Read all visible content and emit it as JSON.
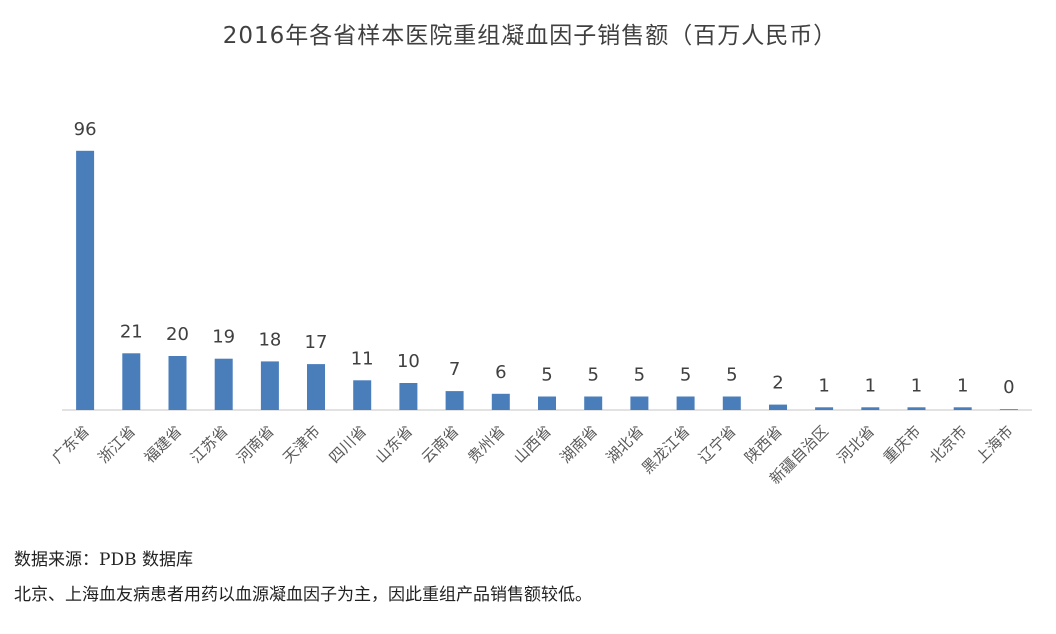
{
  "chart_data": {
    "type": "bar",
    "title": "2016年各省样本医院重组凝血因子销售额（百万人民币）",
    "categories": [
      "广东省",
      "浙江省",
      "福建省",
      "江苏省",
      "河南省",
      "天津市",
      "四川省",
      "山东省",
      "云南省",
      "贵州省",
      "山西省",
      "湖南省",
      "湖北省",
      "黑龙江省",
      "辽宁省",
      "陕西省",
      "新疆自治区",
      "河北省",
      "重庆市",
      "北京市",
      "上海市"
    ],
    "values": [
      96,
      21,
      20,
      19,
      18,
      17,
      11,
      10,
      7,
      6,
      5,
      5,
      5,
      5,
      5,
      2,
      1,
      1,
      1,
      1,
      0
    ],
    "bar_heights": [
      96,
      21,
      20,
      19,
      18,
      17,
      11,
      10,
      7,
      6,
      5,
      5,
      5,
      5,
      5,
      2,
      1,
      1,
      1,
      1,
      0.3
    ],
    "ylim": [
      0,
      100
    ],
    "grid": false,
    "legend": "none",
    "bar_color": "#4a7ebb",
    "axis_color": "#d9d9d9"
  },
  "footer": {
    "source": "数据来源：PDB 数据库",
    "note": "北京、上海血友病患者用药以血源凝血因子为主，因此重组产品销售额较低。"
  }
}
